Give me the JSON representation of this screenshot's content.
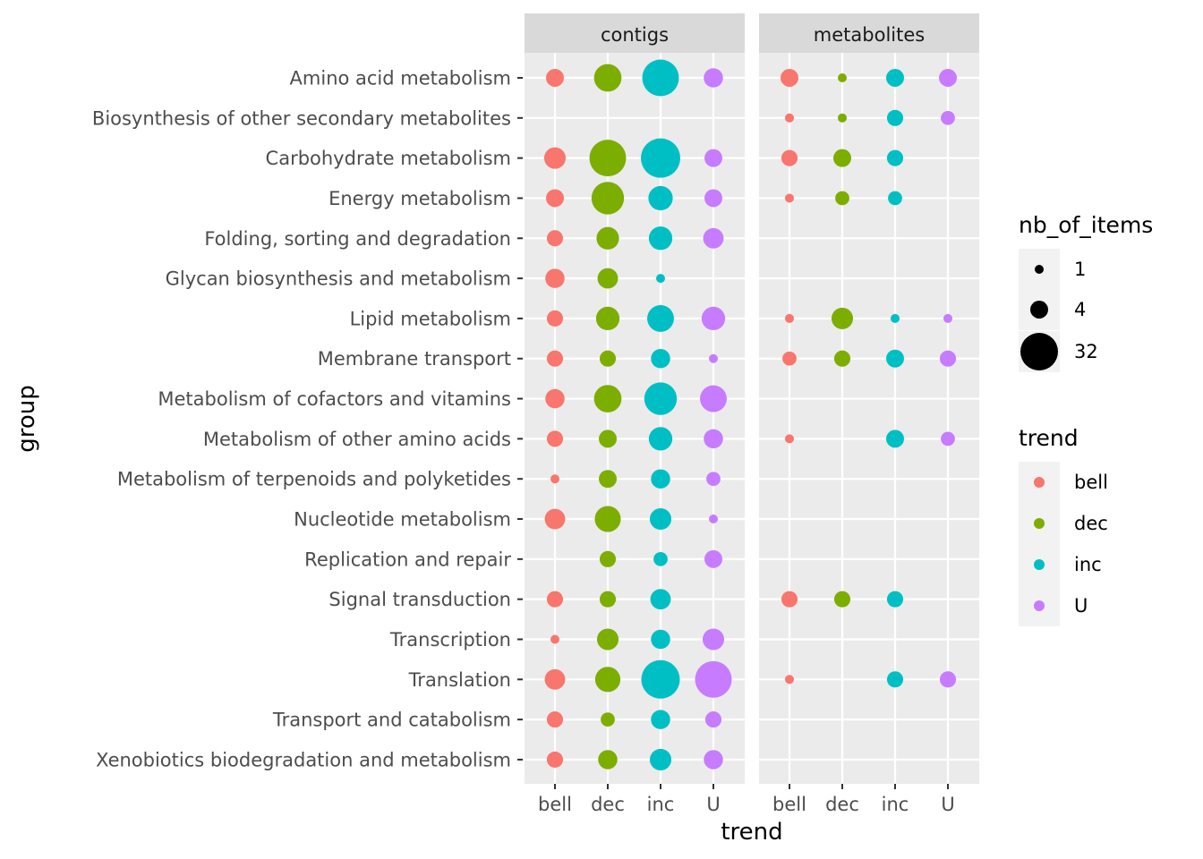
{
  "chart_data": {
    "type": "scatter",
    "xlabel": "trend",
    "ylabel": "group",
    "panels": [
      "contigs",
      "metabolites"
    ],
    "trends": [
      "bell",
      "dec",
      "inc",
      "U"
    ],
    "colors": {
      "bell": "#F8766D",
      "dec": "#7CAE00",
      "inc": "#00BFC4",
      "U": "#C77CFF"
    },
    "groups": [
      "Amino acid metabolism",
      "Biosynthesis of other secondary metabolites",
      "Carbohydrate metabolism",
      "Energy metabolism",
      "Folding, sorting and degradation",
      "Glycan biosynthesis and metabolism",
      "Lipid metabolism",
      "Membrane transport",
      "Metabolism of cofactors and vitamins",
      "Metabolism of other amino acids",
      "Metabolism of terpenoids and polyketides",
      "Nucleotide metabolism",
      "Replication and repair",
      "Signal transduction",
      "Transcription",
      "Translation",
      "Transport and catabolism",
      "Xenobiotics biodegradation and metabolism"
    ],
    "size_legend": {
      "title": "nb_of_items",
      "labels": [
        "1",
        "4",
        "32"
      ],
      "values": [
        1,
        4,
        32
      ]
    },
    "color_legend": {
      "title": "trend",
      "labels": [
        "bell",
        "dec",
        "inc",
        "U"
      ]
    },
    "points": {
      "contigs": [
        {
          "group": "Amino acid metabolism",
          "bell": 4,
          "dec": 14,
          "inc": 30,
          "U": 5
        },
        {
          "group": "Biosynthesis of other secondary metabolites",
          "bell": null,
          "dec": null,
          "inc": null,
          "U": null
        },
        {
          "group": "Carbohydrate metabolism",
          "bell": 7,
          "dec": 30,
          "inc": 36,
          "U": 4
        },
        {
          "group": "Energy metabolism",
          "bell": 4,
          "dec": 22,
          "inc": 10,
          "U": 4
        },
        {
          "group": "Folding, sorting and degradation",
          "bell": 3,
          "dec": 8,
          "inc": 9,
          "U": 6
        },
        {
          "group": "Glycan biosynthesis and metabolism",
          "bell": 5,
          "dec": 6,
          "inc": 1,
          "U": null
        },
        {
          "group": "Lipid metabolism",
          "bell": 3,
          "dec": 9,
          "inc": 13,
          "U": 9
        },
        {
          "group": "Membrane transport",
          "bell": 3,
          "dec": 3,
          "inc": 5,
          "U": 1
        },
        {
          "group": "Metabolism of cofactors and vitamins",
          "bell": 5,
          "dec": 14,
          "inc": 22,
          "U": 13
        },
        {
          "group": "Metabolism of other amino acids",
          "bell": 3,
          "dec": 4,
          "inc": 9,
          "U": 5
        },
        {
          "group": "Metabolism of terpenoids and polyketides",
          "bell": 1,
          "dec": 4,
          "inc": 5,
          "U": 2
        },
        {
          "group": "Nucleotide metabolism",
          "bell": 6,
          "dec": 12,
          "inc": 7,
          "U": 1
        },
        {
          "group": "Replication and repair",
          "bell": null,
          "dec": 3,
          "inc": 2,
          "U": 4
        },
        {
          "group": "Signal transduction",
          "bell": 3,
          "dec": 3,
          "inc": 6,
          "U": null
        },
        {
          "group": "Transcription",
          "bell": 1,
          "dec": 7,
          "inc": 5,
          "U": 7
        },
        {
          "group": "Translation",
          "bell": 6,
          "dec": 11,
          "inc": 34,
          "U": 30
        },
        {
          "group": "Transport and catabolism",
          "bell": 3,
          "dec": 2,
          "inc": 5,
          "U": 3
        },
        {
          "group": "Xenobiotics biodegradation and metabolism",
          "bell": 3,
          "dec": 5,
          "inc": 7,
          "U": 5
        }
      ],
      "metabolites": [
        {
          "group": "Amino acid metabolism",
          "bell": 4,
          "dec": 1,
          "inc": 4,
          "U": 4
        },
        {
          "group": "Biosynthesis of other secondary metabolites",
          "bell": 1,
          "dec": 1,
          "inc": 3,
          "U": 2
        },
        {
          "group": "Carbohydrate metabolism",
          "bell": 3,
          "dec": 4,
          "inc": 3,
          "U": null
        },
        {
          "group": "Energy metabolism",
          "bell": 1,
          "dec": 2,
          "inc": 2,
          "U": null
        },
        {
          "group": "Folding, sorting and degradation",
          "bell": null,
          "dec": null,
          "inc": null,
          "U": null
        },
        {
          "group": "Glycan biosynthesis and metabolism",
          "bell": null,
          "dec": null,
          "inc": null,
          "U": null
        },
        {
          "group": "Lipid metabolism",
          "bell": 1,
          "dec": 7,
          "inc": 1,
          "U": 1
        },
        {
          "group": "Membrane transport",
          "bell": 2,
          "dec": 3,
          "inc": 4,
          "U": 3
        },
        {
          "group": "Metabolism of cofactors and vitamins",
          "bell": null,
          "dec": null,
          "inc": null,
          "U": null
        },
        {
          "group": "Metabolism of other amino acids",
          "bell": 1,
          "dec": null,
          "inc": 4,
          "U": 2
        },
        {
          "group": "Metabolism of terpenoids and polyketides",
          "bell": null,
          "dec": null,
          "inc": null,
          "U": null
        },
        {
          "group": "Nucleotide metabolism",
          "bell": null,
          "dec": null,
          "inc": null,
          "U": null
        },
        {
          "group": "Replication and repair",
          "bell": null,
          "dec": null,
          "inc": null,
          "U": null
        },
        {
          "group": "Signal transduction",
          "bell": 3,
          "dec": 3,
          "inc": 3,
          "U": null
        },
        {
          "group": "Transcription",
          "bell": null,
          "dec": null,
          "inc": null,
          "U": null
        },
        {
          "group": "Translation",
          "bell": 1,
          "dec": null,
          "inc": 3,
          "U": 3
        },
        {
          "group": "Transport and catabolism",
          "bell": null,
          "dec": null,
          "inc": null,
          "U": null
        },
        {
          "group": "Xenobiotics biodegradation and metabolism",
          "bell": null,
          "dec": null,
          "inc": null,
          "U": null
        }
      ]
    }
  }
}
